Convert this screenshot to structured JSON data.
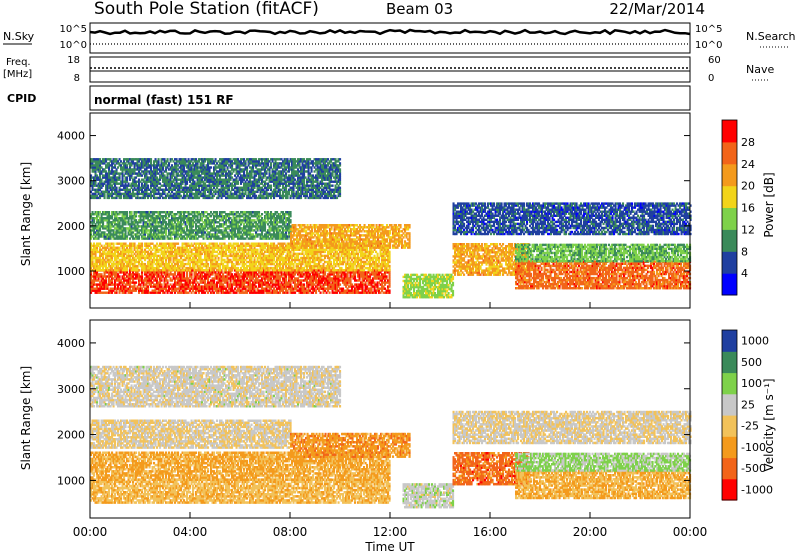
{
  "header": {
    "station": "South Pole Station (fitACF)",
    "beam": "Beam 03",
    "date": "22/Mar/2014"
  },
  "top_panels": {
    "nsky_label": "N.Sky",
    "nsky_ticks": [
      "10^5",
      "10^0"
    ],
    "nsearch_label": "N.Search",
    "nsearch_ticks": [
      "10^5",
      "10^0"
    ],
    "freq_label_line1": "Freq.",
    "freq_label_line2": "[MHz]",
    "freq_ticks": [
      "18",
      "8"
    ],
    "nave_label": "Nave",
    "nave_ticks": [
      "60",
      "0"
    ],
    "cpid_label": "CPID",
    "cpid_text": "normal (fast) 151 RF"
  },
  "colors": {
    "power_scale": [
      "#0000ff",
      "#1f3fa0",
      "#3a8a5a",
      "#7ed14a",
      "#f2d41a",
      "#f49a1c",
      "#f26419",
      "#ff0000"
    ],
    "velocity_scale": [
      "#ff0000",
      "#f26419",
      "#f49a1c",
      "#f2c25a",
      "#c8c8c8",
      "#7ed14a",
      "#3a8a5a",
      "#1f3fa0"
    ]
  },
  "chart_data": [
    {
      "type": "heatmap",
      "quantity": "Power",
      "xlabel": "",
      "ylabel": "Slant Range [km]",
      "xlim": [
        "00:00",
        "24:00"
      ],
      "ylim": [
        180,
        4500
      ],
      "yticks": [
        "1000",
        "2000",
        "3000",
        "4000"
      ],
      "colorbar": {
        "label": "Power [dB]",
        "ticks": [
          "4",
          "8",
          "12",
          "16",
          "20",
          "24",
          "28"
        ],
        "range": [
          0,
          30
        ]
      },
      "bands": [
        {
          "t0": 0.0,
          "t1": 12.0,
          "r0": 500,
          "r1": 1000,
          "value": 26
        },
        {
          "t0": 0.0,
          "t1": 12.0,
          "r0": 1000,
          "r1": 1600,
          "value": 18
        },
        {
          "t0": 0.0,
          "t1": 8.0,
          "r0": 1700,
          "r1": 2300,
          "value": 10
        },
        {
          "t0": 8.0,
          "t1": 12.8,
          "r0": 1500,
          "r1": 2000,
          "value": 20
        },
        {
          "t0": 12.5,
          "t1": 14.5,
          "r0": 400,
          "r1": 900,
          "value": 14
        },
        {
          "t0": 14.5,
          "t1": 17.5,
          "r0": 900,
          "r1": 1600,
          "value": 20
        },
        {
          "t0": 17.0,
          "t1": 24.0,
          "r0": 600,
          "r1": 1200,
          "value": 24
        },
        {
          "t0": 17.0,
          "t1": 24.0,
          "r0": 1200,
          "r1": 1600,
          "value": 12
        },
        {
          "t0": 14.5,
          "t1": 24.0,
          "r0": 1800,
          "r1": 2500,
          "value": 6
        },
        {
          "t0": 0.0,
          "t1": 10.0,
          "r0": 2600,
          "r1": 3500,
          "value": 8
        }
      ]
    },
    {
      "type": "heatmap",
      "quantity": "Velocity",
      "xlabel": "Time UT",
      "ylabel": "Slant Range [km]",
      "xlim": [
        "00:00",
        "24:00"
      ],
      "ylim": [
        180,
        4500
      ],
      "xticks": [
        "00:00",
        "04:00",
        "08:00",
        "12:00",
        "16:00",
        "20:00",
        "00:00"
      ],
      "yticks": [
        "1000",
        "2000",
        "3000",
        "4000"
      ],
      "colorbar": {
        "label": "Velocity [m s⁻¹]",
        "ticks": [
          "-1000",
          "-500",
          "-100",
          "-25",
          "25",
          "100",
          "500",
          "1000"
        ],
        "range": [
          -1000,
          1000
        ]
      },
      "bands": [
        {
          "t0": 0.0,
          "t1": 12.0,
          "r0": 500,
          "r1": 1000,
          "value": -200
        },
        {
          "t0": 0.0,
          "t1": 12.0,
          "r0": 1000,
          "r1": 1600,
          "value": -300
        },
        {
          "t0": 0.0,
          "t1": 8.0,
          "r0": 1700,
          "r1": 2300,
          "value": 0
        },
        {
          "t0": 8.0,
          "t1": 12.8,
          "r0": 1500,
          "r1": 2000,
          "value": -400
        },
        {
          "t0": 12.5,
          "t1": 14.5,
          "r0": 400,
          "r1": 900,
          "value": 150
        },
        {
          "t0": 14.5,
          "t1": 17.5,
          "r0": 900,
          "r1": 1600,
          "value": -600
        },
        {
          "t0": 17.0,
          "t1": 24.0,
          "r0": 600,
          "r1": 1200,
          "value": -250
        },
        {
          "t0": 17.0,
          "t1": 24.0,
          "r0": 1200,
          "r1": 1600,
          "value": 300
        },
        {
          "t0": 14.5,
          "t1": 24.0,
          "r0": 1800,
          "r1": 2500,
          "value": 20
        },
        {
          "t0": 0.0,
          "t1": 10.0,
          "r0": 2600,
          "r1": 3500,
          "value": 80
        }
      ]
    }
  ]
}
